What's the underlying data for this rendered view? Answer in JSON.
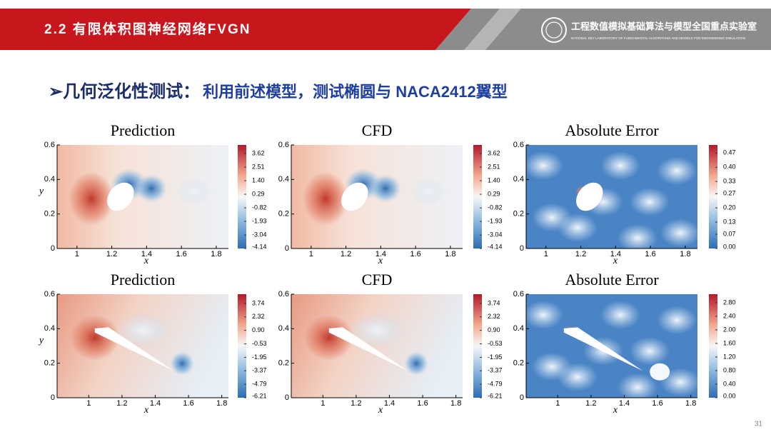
{
  "header": {
    "title": "2.2 有限体积图神经网络FVGN",
    "lab_name": "工程数值模拟基础算法与模型全国重点实验室",
    "lab_name_en": "NATIONAL KEY LABORATORY OF FUNDAMENTAL ALGORITHMS AND MODELS FOR ENGINEERING SIMULATION"
  },
  "heading": {
    "bullet": "➢",
    "label": "几何泛化性测试：",
    "text": "利用前述模型，测试椭圆与 NACA2412翼型"
  },
  "panels": [
    {
      "title": "Prediction",
      "kind": "field",
      "shape": "ellipse",
      "xlabel": "x",
      "ylabel": "y",
      "xlim": [
        0.886,
        1.87
      ],
      "ylim": [
        0,
        0.6
      ],
      "xticks": [
        1,
        1.2,
        1.4,
        1.6,
        1.8
      ],
      "yticks": [
        0,
        0.2,
        0.4,
        0.6
      ],
      "colorbar": {
        "clim": [
          -4.14,
          4.32
        ],
        "ticks": [
          3.62,
          2.51,
          {
            "value": 1.4,
            "label": "1.40"
          },
          0.29,
          -0.82,
          -1.93,
          -3.04,
          -4.14
        ]
      }
    },
    {
      "title": "CFD",
      "kind": "field",
      "shape": "ellipse",
      "xlabel": "x",
      "xlim": [
        0.886,
        1.87
      ],
      "ylim": [
        0,
        0.6
      ],
      "xticks": [
        1,
        1.2,
        1.4,
        1.6,
        1.8
      ],
      "yticks": [
        0,
        0.2,
        0.4,
        0.6
      ],
      "colorbar": {
        "clim": [
          -4.14,
          4.32
        ],
        "ticks": [
          3.62,
          2.51,
          {
            "value": 1.4,
            "label": "1.40"
          },
          0.29,
          -0.82,
          -1.93,
          -3.04,
          -4.14
        ]
      }
    },
    {
      "title": "Absolute Error",
      "kind": "error",
      "shape": "ellipse",
      "xlabel": "x",
      "xlim": [
        0.886,
        1.87
      ],
      "ylim": [
        0,
        0.6
      ],
      "xticks": [
        1,
        1.2,
        1.4,
        1.6,
        1.8
      ],
      "yticks": [
        0,
        0.2,
        0.4,
        0.6
      ],
      "colorbar": {
        "clim": [
          0,
          0.51
        ],
        "ticks": [
          0.47,
          {
            "value": 0.4,
            "label": "0.40"
          },
          0.33,
          0.27,
          {
            "value": 0.2,
            "label": "0.20"
          },
          0.13,
          0.07,
          {
            "value": 0,
            "label": "0.00"
          }
        ]
      }
    },
    {
      "title": "Prediction",
      "kind": "field",
      "shape": "airfoil",
      "xlabel": "x",
      "ylabel": "y",
      "xlim": [
        0.81,
        1.84
      ],
      "ylim": [
        0,
        0.6
      ],
      "xticks": [
        1,
        1.2,
        1.4,
        1.6,
        1.8
      ],
      "yticks": [
        0,
        0.2,
        0.4,
        0.6
      ],
      "colorbar": {
        "clim": [
          -6.21,
          4.71
        ],
        "ticks": [
          3.74,
          2.32,
          {
            "value": 0.9,
            "label": "0.90"
          },
          -0.53,
          -1.95,
          -3.37,
          -4.79,
          -6.21
        ]
      }
    },
    {
      "title": "CFD",
      "kind": "field",
      "shape": "airfoil",
      "xlabel": "x",
      "xlim": [
        0.81,
        1.84
      ],
      "ylim": [
        0,
        0.6
      ],
      "xticks": [
        1,
        1.2,
        1.4,
        1.6,
        1.8
      ],
      "yticks": [
        0,
        0.2,
        0.4,
        0.6
      ],
      "colorbar": {
        "clim": [
          -6.21,
          4.71
        ],
        "ticks": [
          3.74,
          2.32,
          {
            "value": 0.9,
            "label": "0.90"
          },
          -0.53,
          -1.95,
          -3.37,
          -4.79,
          -6.21
        ]
      }
    },
    {
      "title": "Absolute Error",
      "kind": "error",
      "shape": "airfoil",
      "xlabel": "x",
      "xlim": [
        0.81,
        1.84
      ],
      "ylim": [
        0,
        0.6
      ],
      "xticks": [
        1,
        1.2,
        1.4,
        1.6,
        1.8
      ],
      "yticks": [
        0,
        0.2,
        0.4,
        0.6
      ],
      "colorbar": {
        "clim": [
          0,
          3.05
        ],
        "ticks": [
          {
            "value": 2.8,
            "label": "2.80"
          },
          {
            "value": 2.4,
            "label": "2.40"
          },
          {
            "value": 2,
            "label": "2.00"
          },
          {
            "value": 1.6,
            "label": "1.60"
          },
          {
            "value": 1.2,
            "label": "1.20"
          },
          {
            "value": 0.8,
            "label": "0.80"
          },
          {
            "value": 0.4,
            "label": "0.40"
          },
          {
            "value": 0,
            "label": "0.00"
          }
        ]
      }
    }
  ],
  "page_number": "31"
}
